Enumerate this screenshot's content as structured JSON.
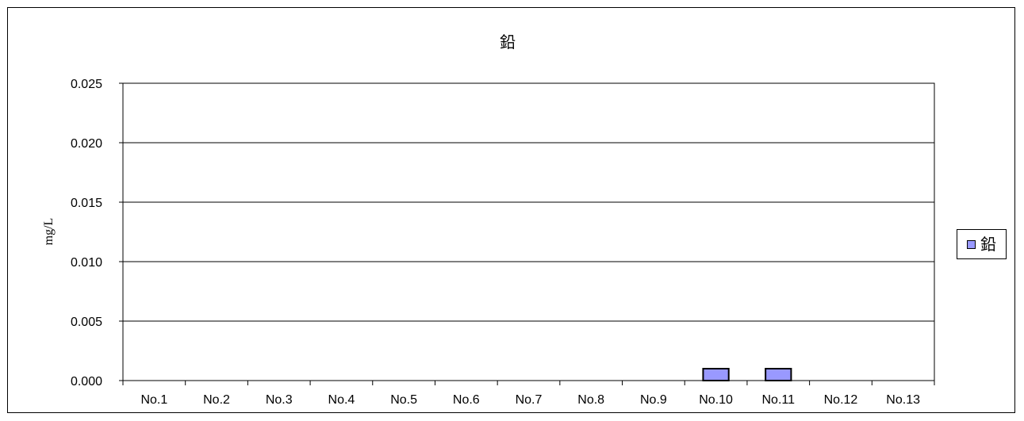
{
  "chart_data": {
    "type": "bar",
    "title": "鉛",
    "xlabel": "",
    "ylabel": "mg/L",
    "categories": [
      "No.1",
      "No.2",
      "No.3",
      "No.4",
      "No.5",
      "No.6",
      "No.7",
      "No.8",
      "No.9",
      "No.10",
      "No.11",
      "No.12",
      "No.13"
    ],
    "series": [
      {
        "name": "鉛",
        "color": "#9999ff",
        "values": [
          0,
          0,
          0,
          0,
          0,
          0,
          0,
          0,
          0,
          0.001,
          0.001,
          0,
          0
        ]
      }
    ],
    "ylim": [
      0,
      0.025
    ],
    "yticks": [
      "0.000",
      "0.005",
      "0.010",
      "0.015",
      "0.020",
      "0.025"
    ],
    "grid": true,
    "legend_position": "right"
  }
}
